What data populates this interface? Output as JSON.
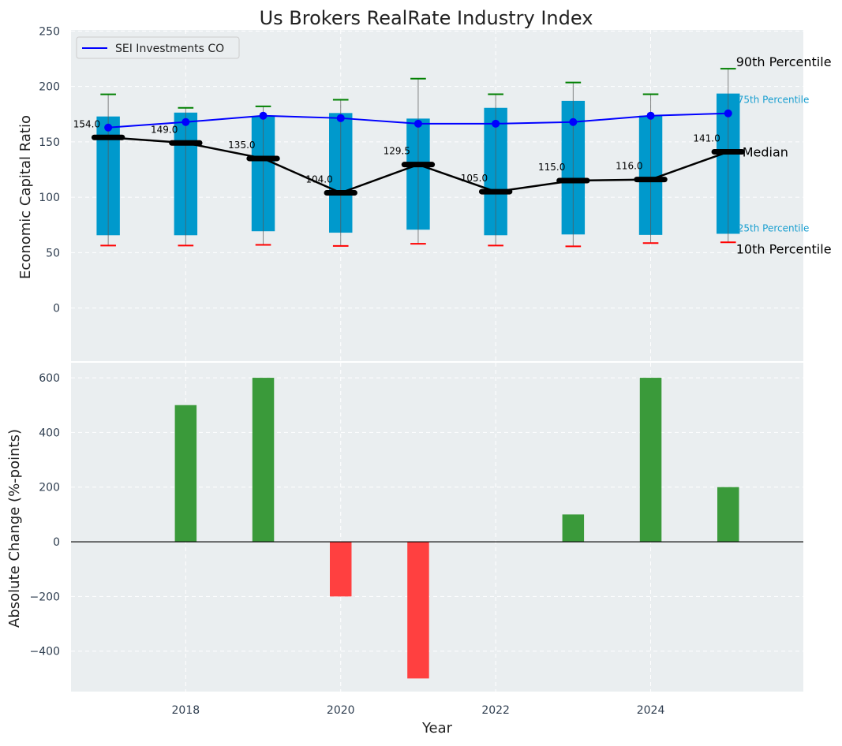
{
  "chart_data": [
    {
      "type": "box-line",
      "title": "Us Brokers RealRate Industry Index",
      "xlabel": "",
      "ylabel": "Economic Capital Ratio",
      "ylim": [
        -48,
        251
      ],
      "xlim": [
        2016.52,
        2025.97
      ],
      "yticks": [
        0,
        50,
        100,
        150,
        200,
        250
      ],
      "grid": true,
      "legend": {
        "position": "top-left",
        "entries": [
          "SEI Investments CO"
        ]
      },
      "x": [
        2017,
        2018,
        2019,
        2020,
        2021,
        2022,
        2023,
        2024,
        2025
      ],
      "p10": [
        56.4,
        56.4,
        57,
        56,
        58,
        56.4,
        55.7,
        58.6,
        59.3
      ],
      "p25": [
        65.7,
        65.7,
        69.3,
        68,
        70.7,
        65.7,
        66.4,
        66,
        67
      ],
      "median": [
        154.0,
        149.0,
        135.0,
        104.0,
        129.5,
        105.0,
        115.0,
        116.0,
        141.0
      ],
      "median_labels": [
        "154.0",
        "149.0",
        "135.0",
        "104.0",
        "129.5",
        "105.0",
        "115.0",
        "116.0",
        "141.0"
      ],
      "p75": [
        172.9,
        176.4,
        172.9,
        176,
        171,
        180.7,
        187,
        173.6,
        193.6
      ],
      "p90": [
        192.9,
        180.7,
        182,
        188,
        207,
        193,
        203.6,
        193,
        216
      ],
      "series": [
        {
          "name": "SEI Investments CO",
          "values": [
            162.9,
            167.9,
            173.6,
            171.4,
            166.4,
            166.4,
            167.9,
            173.6,
            175.7
          ]
        }
      ],
      "annotations": {
        "p90": "90th Percentile",
        "p75": "75th Percentile",
        "median": "Median",
        "p25": "25th Percentile",
        "p10": "10th Percentile"
      }
    },
    {
      "type": "bar",
      "xlabel": "Year",
      "ylabel": "Absolute Change (%-points)",
      "ylim": [
        -548,
        655
      ],
      "xlim": [
        2016.52,
        2025.97
      ],
      "yticks": [
        -400,
        -200,
        0,
        200,
        400,
        600
      ],
      "ytick_labels": [
        "−400",
        "−200",
        "0",
        "200",
        "400",
        "600"
      ],
      "xticks": [
        2018,
        2020,
        2022,
        2024
      ],
      "grid": true,
      "x": [
        2017,
        2018,
        2019,
        2020,
        2021,
        2022,
        2023,
        2024,
        2025
      ],
      "values": [
        0,
        500,
        600,
        -200,
        -500,
        0,
        100,
        600,
        200
      ]
    }
  ],
  "colors": {
    "box": "#0099cc",
    "line": "#0000ff",
    "median": "#000000",
    "p90": "#008000",
    "p10": "#ff0000",
    "pos": "#3a9a3a",
    "neg": "#ff4040",
    "axes_bg": "#eaeef0",
    "label75": "#1a9fd0"
  }
}
